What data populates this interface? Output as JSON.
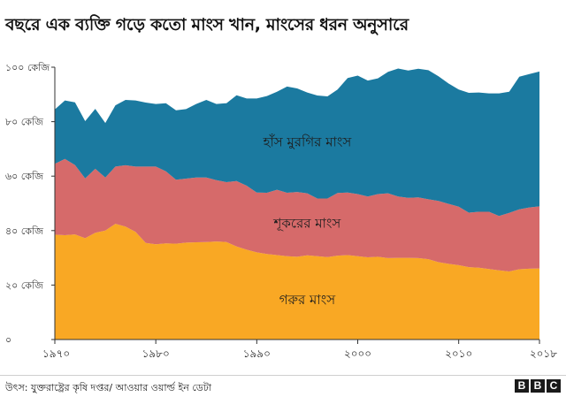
{
  "title": "বছরে এক ব্যক্তি গড়ে কতো মাংস খান, মাংসের ধরন অনুসারে",
  "source": "উৎস: যুক্তরাষ্ট্রের কৃষি দপ্তর/ আওয়ার ওয়ার্ল্ড ইন ডেটা",
  "logo": [
    "B",
    "B",
    "C"
  ],
  "colors": {
    "beef": "#f9a824",
    "pork": "#d66a6a",
    "poultry": "#1b7aa0",
    "axis": "#555555"
  },
  "chart_data": {
    "type": "area",
    "stacked": true,
    "x": [
      1970,
      1971,
      1972,
      1973,
      1974,
      1975,
      1976,
      1977,
      1978,
      1979,
      1980,
      1981,
      1982,
      1983,
      1984,
      1985,
      1986,
      1987,
      1988,
      1989,
      1990,
      1991,
      1992,
      1993,
      1994,
      1995,
      1996,
      1997,
      1998,
      1999,
      2000,
      2001,
      2002,
      2003,
      2004,
      2005,
      2006,
      2007,
      2008,
      2009,
      2010,
      2011,
      2012,
      2013,
      2014,
      2015,
      2016,
      2017,
      2018
    ],
    "series": [
      {
        "name": "গরুর মাংস",
        "key": "beef",
        "values": [
          38.5,
          38.3,
          38.6,
          37.2,
          39.2,
          40.0,
          42.5,
          41.5,
          39.5,
          35.5,
          35.0,
          35.3,
          35.2,
          35.6,
          35.7,
          35.8,
          36.0,
          35.8,
          34.2,
          33.0,
          32.0,
          31.4,
          31.0,
          30.6,
          30.4,
          30.9,
          30.6,
          30.3,
          30.8,
          31.0,
          30.6,
          30.2,
          30.4,
          29.9,
          30.0,
          30.0,
          29.9,
          29.5,
          28.4,
          27.8,
          27.3,
          26.6,
          26.4,
          25.9,
          25.4,
          25.0,
          25.8,
          26.0,
          26.1
        ]
      },
      {
        "name": "শূকরের মাংস",
        "key": "pork",
        "values": [
          26.0,
          28.0,
          25.5,
          22.0,
          23.5,
          19.5,
          21.0,
          22.5,
          24.0,
          28.0,
          28.5,
          26.5,
          23.5,
          23.5,
          23.8,
          23.7,
          22.5,
          22.0,
          24.0,
          23.5,
          22.0,
          22.5,
          24.0,
          23.3,
          23.8,
          22.8,
          21.2,
          21.5,
          23.0,
          23.0,
          22.8,
          22.3,
          23.0,
          23.8,
          22.5,
          22.0,
          22.3,
          22.0,
          22.5,
          22.0,
          21.5,
          20.0,
          20.5,
          21.0,
          20.0,
          21.5,
          22.0,
          22.5,
          22.8
        ]
      },
      {
        "name": "হাঁস মুরগির মাংস",
        "key": "poultry",
        "values": [
          20.0,
          21.5,
          23.0,
          21.0,
          22.0,
          20.0,
          22.5,
          24.0,
          24.3,
          23.5,
          23.0,
          25.0,
          25.5,
          25.5,
          27.0,
          28.5,
          28.0,
          29.0,
          31.5,
          32.0,
          34.5,
          35.5,
          36.0,
          39.0,
          38.0,
          37.0,
          37.8,
          37.5,
          38.0,
          42.0,
          43.5,
          42.6,
          42.5,
          44.6,
          47.0,
          46.8,
          47.2,
          47.4,
          45.8,
          44.2,
          43.0,
          44.0,
          43.8,
          43.5,
          45.0,
          44.5,
          48.7,
          49.0,
          49.5
        ]
      }
    ],
    "yticks": [
      "০",
      "২০ কেজি",
      "৪০ কেজি",
      "৬০ কেজি",
      "৮০ কেজি",
      "১০০ কেজি"
    ],
    "ytick_values": [
      0,
      20,
      40,
      60,
      80,
      100
    ],
    "xticks": [
      "১৯৭০",
      "১৯৮০",
      "১৯৯০",
      "২০০০",
      "২০১০",
      "২০১৮"
    ],
    "xtick_values": [
      1970,
      1980,
      1990,
      2000,
      2010,
      2018
    ],
    "ylim": [
      0,
      100
    ],
    "xlim": [
      1970,
      2018
    ],
    "labels": [
      {
        "text": "হাঁস মুরগির মাংস",
        "x": 1995,
        "y": 71
      },
      {
        "text": "শূকরের মাংস",
        "x": 1995,
        "y": 41
      },
      {
        "text": "গরুর মাংস",
        "x": 1995,
        "y": 13
      }
    ]
  }
}
